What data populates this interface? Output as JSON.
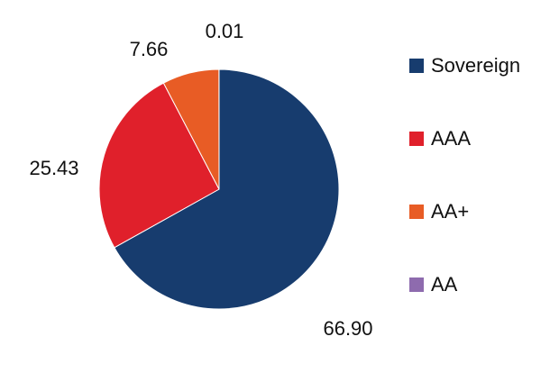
{
  "chart_data": {
    "type": "pie",
    "title": "",
    "legend_position": "right",
    "series": [
      {
        "label": "Sovereign",
        "value": 66.9,
        "display": "66.90",
        "color": "#173C6E"
      },
      {
        "label": "AAA",
        "value": 25.43,
        "display": "25.43",
        "color": "#E0202B"
      },
      {
        "label": "AA+",
        "value": 7.66,
        "display": "7.66",
        "color": "#E85C25"
      },
      {
        "label": "AA",
        "value": 0.01,
        "display": "0.01",
        "color": "#8E6BAE"
      }
    ]
  }
}
